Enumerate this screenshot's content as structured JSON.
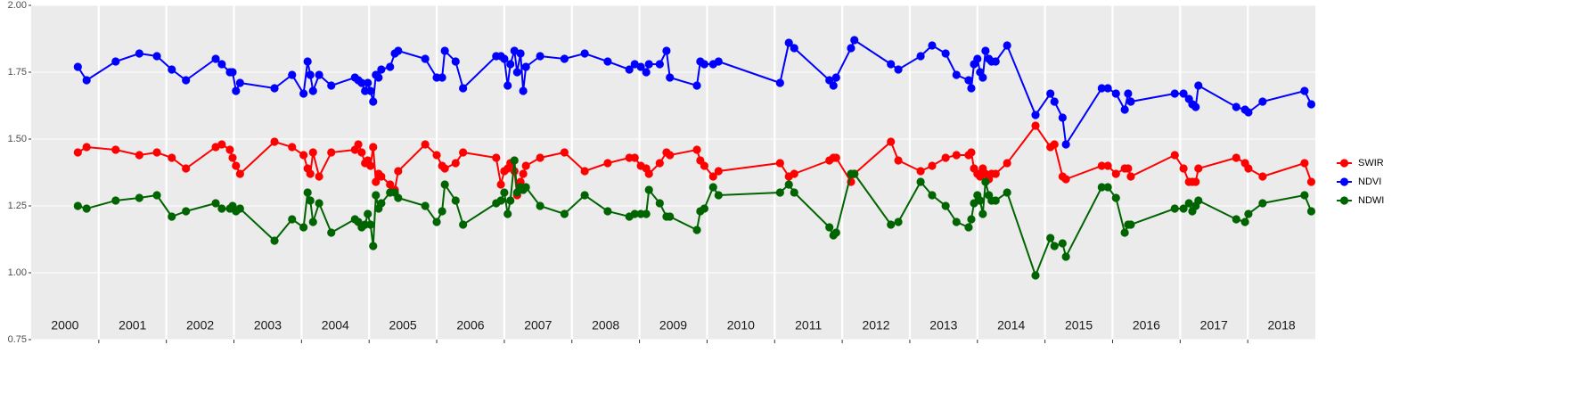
{
  "chart_data": {
    "type": "line",
    "x": [
      2000.69,
      2000.82,
      2001.25,
      2001.6,
      2001.86,
      2002.08,
      2002.29,
      2002.73,
      2002.82,
      2002.94,
      2002.98,
      2003.03,
      2003.09,
      2003.6,
      2003.86,
      2004.03,
      2004.09,
      2004.13,
      2004.17,
      2004.26,
      2004.44,
      2004.79,
      2004.84,
      2004.89,
      2004.94,
      2004.98,
      2005.02,
      2005.06,
      2005.1,
      2005.14,
      2005.18,
      2005.31,
      2005.38,
      2005.43,
      2005.83,
      2006.0,
      2006.08,
      2006.12,
      2006.28,
      2006.39,
      2006.88,
      2006.95,
      2007.0,
      2007.05,
      2007.09,
      2007.15,
      2007.19,
      2007.24,
      2007.28,
      2007.32,
      2007.53,
      2007.89,
      2008.19,
      2008.53,
      2008.85,
      2008.93,
      2009.02,
      2009.1,
      2009.14,
      2009.3,
      2009.4,
      2009.45,
      2009.85,
      2009.9,
      2009.96,
      2010.09,
      2010.17,
      2011.08,
      2011.21,
      2011.29,
      2011.81,
      2011.87,
      2011.91,
      2012.13,
      2012.18,
      2012.72,
      2012.83,
      2013.16,
      2013.33,
      2013.53,
      2013.69,
      2013.87,
      2013.91,
      2013.95,
      2014.0,
      2014.04,
      2014.08,
      2014.12,
      2014.17,
      2014.21,
      2014.27,
      2014.44,
      2014.86,
      2015.08,
      2015.14,
      2015.26,
      2015.31,
      2015.84,
      2015.93,
      2016.05,
      2016.18,
      2016.23,
      2016.27,
      2016.92,
      2017.05,
      2017.13,
      2017.18,
      2017.23,
      2017.27,
      2017.83,
      2017.96,
      2018.01,
      2018.22,
      2018.84,
      2018.94
    ],
    "series": [
      {
        "name": "SWIR",
        "color": "#ff0000",
        "values": [
          1.45,
          1.47,
          1.46,
          1.44,
          1.45,
          1.43,
          1.39,
          1.47,
          1.48,
          1.46,
          1.43,
          1.4,
          1.37,
          1.49,
          1.47,
          1.44,
          1.39,
          1.37,
          1.45,
          1.36,
          1.45,
          1.46,
          1.48,
          1.45,
          1.41,
          1.42,
          1.4,
          1.47,
          1.34,
          1.37,
          1.36,
          1.33,
          1.31,
          1.38,
          1.48,
          1.44,
          1.4,
          1.39,
          1.41,
          1.45,
          1.43,
          1.33,
          1.38,
          1.39,
          1.41,
          1.38,
          1.29,
          1.34,
          1.37,
          1.4,
          1.43,
          1.45,
          1.38,
          1.41,
          1.43,
          1.43,
          1.4,
          1.39,
          1.37,
          1.41,
          1.45,
          1.44,
          1.46,
          1.42,
          1.4,
          1.36,
          1.38,
          1.41,
          1.36,
          1.37,
          1.42,
          1.43,
          1.43,
          1.34,
          1.37,
          1.49,
          1.42,
          1.38,
          1.4,
          1.43,
          1.44,
          1.44,
          1.45,
          1.39,
          1.37,
          1.36,
          1.39,
          1.37,
          1.35,
          1.37,
          1.37,
          1.41,
          1.55,
          1.47,
          1.48,
          1.36,
          1.35,
          1.4,
          1.4,
          1.37,
          1.39,
          1.39,
          1.36,
          1.44,
          1.39,
          1.34,
          1.34,
          1.34,
          1.39,
          1.43,
          1.41,
          1.39,
          1.36,
          1.41,
          1.34
        ]
      },
      {
        "name": "NDVI",
        "color": "#0000ff",
        "values": [
          1.77,
          1.72,
          1.79,
          1.82,
          1.81,
          1.76,
          1.72,
          1.8,
          1.78,
          1.75,
          1.75,
          1.68,
          1.71,
          1.69,
          1.74,
          1.67,
          1.79,
          1.74,
          1.68,
          1.74,
          1.7,
          1.73,
          1.72,
          1.71,
          1.68,
          1.71,
          1.68,
          1.64,
          1.74,
          1.73,
          1.76,
          1.77,
          1.82,
          1.83,
          1.8,
          1.73,
          1.73,
          1.83,
          1.79,
          1.69,
          1.81,
          1.81,
          1.8,
          1.7,
          1.78,
          1.83,
          1.75,
          1.82,
          1.68,
          1.77,
          1.81,
          1.8,
          1.82,
          1.79,
          1.76,
          1.78,
          1.77,
          1.75,
          1.78,
          1.78,
          1.83,
          1.73,
          1.7,
          1.79,
          1.78,
          1.78,
          1.79,
          1.71,
          1.86,
          1.84,
          1.72,
          1.7,
          1.73,
          1.84,
          1.87,
          1.78,
          1.76,
          1.81,
          1.85,
          1.82,
          1.74,
          1.72,
          1.69,
          1.78,
          1.8,
          1.75,
          1.73,
          1.83,
          1.8,
          1.79,
          1.79,
          1.85,
          1.59,
          1.67,
          1.64,
          1.58,
          1.48,
          1.69,
          1.69,
          1.67,
          1.61,
          1.67,
          1.64,
          1.67,
          1.67,
          1.65,
          1.63,
          1.62,
          1.7,
          1.62,
          1.61,
          1.6,
          1.64,
          1.68,
          1.63
        ]
      },
      {
        "name": "NDWI",
        "color": "#006400",
        "values": [
          1.25,
          1.24,
          1.27,
          1.28,
          1.29,
          1.21,
          1.23,
          1.26,
          1.24,
          1.24,
          1.25,
          1.23,
          1.24,
          1.12,
          1.2,
          1.17,
          1.3,
          1.27,
          1.19,
          1.26,
          1.15,
          1.2,
          1.19,
          1.17,
          1.18,
          1.22,
          1.18,
          1.1,
          1.29,
          1.24,
          1.26,
          1.3,
          1.3,
          1.28,
          1.25,
          1.19,
          1.23,
          1.33,
          1.27,
          1.18,
          1.26,
          1.27,
          1.3,
          1.22,
          1.27,
          1.42,
          1.3,
          1.32,
          1.31,
          1.32,
          1.25,
          1.22,
          1.29,
          1.23,
          1.21,
          1.22,
          1.22,
          1.22,
          1.31,
          1.26,
          1.21,
          1.21,
          1.16,
          1.23,
          1.24,
          1.32,
          1.29,
          1.3,
          1.33,
          1.3,
          1.17,
          1.14,
          1.15,
          1.37,
          1.37,
          1.18,
          1.19,
          1.34,
          1.29,
          1.25,
          1.19,
          1.17,
          1.2,
          1.26,
          1.29,
          1.27,
          1.22,
          1.34,
          1.29,
          1.27,
          1.27,
          1.3,
          0.99,
          1.13,
          1.1,
          1.11,
          1.06,
          1.32,
          1.32,
          1.28,
          1.15,
          1.18,
          1.18,
          1.24,
          1.24,
          1.26,
          1.23,
          1.25,
          1.27,
          1.2,
          1.19,
          1.22,
          1.26,
          1.29,
          1.23
        ]
      }
    ],
    "xlim": [
      2000,
      2019
    ],
    "xticks": [
      2001,
      2002,
      2003,
      2004,
      2005,
      2006,
      2007,
      2008,
      2009,
      2010,
      2011,
      2012,
      2013,
      2014,
      2015,
      2016,
      2017,
      2018
    ],
    "year_labels": [
      "2000",
      "2001",
      "2002",
      "2003",
      "2004",
      "2005",
      "2006",
      "2007",
      "2008",
      "2009",
      "2010",
      "2011",
      "2012",
      "2013",
      "2014",
      "2015",
      "2016",
      "2017",
      "2018"
    ],
    "ylim": [
      0.75,
      2
    ],
    "yticks": [
      0.75,
      {
        "value": 1,
        "label": "1.00"
      },
      1.25,
      {
        "value": 1.5,
        "label": "1.50"
      },
      1.75,
      {
        "value": 2,
        "label": "2.00"
      }
    ],
    "grid": true,
    "legend": "right"
  }
}
